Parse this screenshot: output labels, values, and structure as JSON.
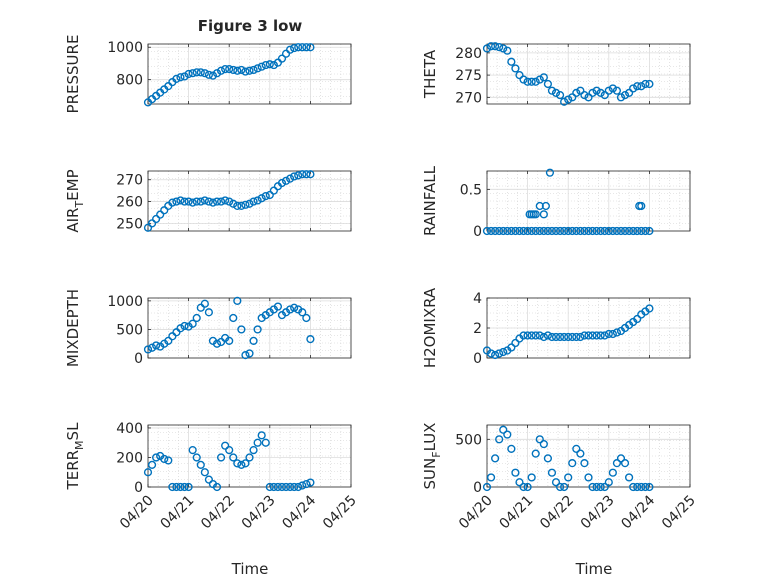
{
  "figure": {
    "title": "Figure 3 low",
    "xlabel": "Time",
    "marker_color": "#0072BD",
    "time_ticks": [
      "04/20",
      "04/21",
      "04/22",
      "04/23",
      "04/24",
      "04/25"
    ]
  },
  "chart_data": [
    {
      "type": "scatter",
      "name": "PRESSURE",
      "ylabel": "PRESSURE",
      "xlim": [
        0,
        5
      ],
      "ylim": [
        650,
        1020
      ],
      "yticks": [
        800,
        1000
      ],
      "grid": true,
      "x": [
        0,
        0.1,
        0.2,
        0.3,
        0.4,
        0.5,
        0.6,
        0.7,
        0.8,
        0.9,
        1.0,
        1.1,
        1.2,
        1.3,
        1.4,
        1.5,
        1.6,
        1.7,
        1.8,
        1.9,
        2.0,
        2.1,
        2.2,
        2.3,
        2.4,
        2.5,
        2.6,
        2.7,
        2.8,
        2.9,
        3.0,
        3.1,
        3.2,
        3.3,
        3.4,
        3.5,
        3.6,
        3.7,
        3.8,
        3.9,
        4.0
      ],
      "y": [
        660,
        680,
        700,
        720,
        740,
        760,
        785,
        805,
        815,
        820,
        835,
        840,
        845,
        845,
        840,
        830,
        825,
        840,
        855,
        865,
        865,
        860,
        855,
        860,
        850,
        855,
        860,
        870,
        880,
        890,
        895,
        890,
        905,
        930,
        960,
        985,
        995,
        1000,
        1000,
        1000,
        1000
      ]
    },
    {
      "type": "scatter",
      "name": "THETA",
      "ylabel": "THETA",
      "xlim": [
        0,
        5
      ],
      "ylim": [
        268.5,
        282
      ],
      "yticks": [
        270,
        275,
        280
      ],
      "grid": true,
      "x": [
        0,
        0.1,
        0.2,
        0.3,
        0.4,
        0.5,
        0.6,
        0.7,
        0.8,
        0.9,
        1.0,
        1.1,
        1.2,
        1.3,
        1.4,
        1.5,
        1.6,
        1.7,
        1.8,
        1.9,
        2.0,
        2.1,
        2.2,
        2.3,
        2.4,
        2.5,
        2.6,
        2.7,
        2.8,
        2.9,
        3.0,
        3.1,
        3.2,
        3.3,
        3.4,
        3.5,
        3.6,
        3.7,
        3.8,
        3.9,
        4.0
      ],
      "y": [
        281,
        281.5,
        281.5,
        281.3,
        281,
        280.5,
        278,
        276.5,
        275,
        274,
        273.5,
        273.5,
        273.5,
        274,
        274.5,
        273,
        271.5,
        271,
        270.5,
        269,
        269.5,
        270,
        271,
        271.5,
        270.5,
        270,
        271,
        271.5,
        271,
        270.5,
        271.5,
        272,
        271.5,
        270,
        270.5,
        271,
        272,
        272.5,
        272.5,
        273,
        273
      ]
    },
    {
      "type": "scatter",
      "name": "AIR_TEMP",
      "ylabel": "AIR_TEMP",
      "xlim": [
        0,
        5
      ],
      "ylim": [
        246.5,
        274
      ],
      "yticks": [
        250,
        260,
        270
      ],
      "grid": true,
      "x": [
        0,
        0.1,
        0.2,
        0.3,
        0.4,
        0.5,
        0.6,
        0.7,
        0.8,
        0.9,
        1.0,
        1.1,
        1.2,
        1.3,
        1.4,
        1.5,
        1.6,
        1.7,
        1.8,
        1.9,
        2.0,
        2.1,
        2.2,
        2.3,
        2.4,
        2.5,
        2.6,
        2.7,
        2.8,
        2.9,
        3.0,
        3.1,
        3.2,
        3.3,
        3.4,
        3.5,
        3.6,
        3.7,
        3.8,
        3.9,
        4.0
      ],
      "y": [
        248,
        250,
        252,
        254,
        256,
        258,
        259.5,
        260,
        260.5,
        260,
        260,
        259.5,
        260,
        260,
        260.5,
        260,
        259.5,
        260,
        260,
        260.5,
        260,
        259,
        258,
        258,
        258.5,
        259,
        260,
        260.5,
        261.5,
        262.5,
        263,
        265,
        267,
        268.5,
        269.5,
        270.5,
        271.5,
        272,
        272.5,
        272.5,
        272.5
      ]
    },
    {
      "type": "scatter",
      "name": "RAINFALL",
      "ylabel": "RAINFALL",
      "xlim": [
        0,
        5
      ],
      "ylim": [
        0,
        0.72
      ],
      "yticks": [
        0,
        0.5
      ],
      "grid": true,
      "x": [
        0,
        0.1,
        0.2,
        0.3,
        0.4,
        0.5,
        0.6,
        0.7,
        0.8,
        0.9,
        1.0,
        1.1,
        1.2,
        1.3,
        1.4,
        1.5,
        1.6,
        1.7,
        1.8,
        1.9,
        2.0,
        2.1,
        2.2,
        2.3,
        2.4,
        2.5,
        2.6,
        2.7,
        2.8,
        2.9,
        3.0,
        3.1,
        3.2,
        3.3,
        3.4,
        3.5,
        3.6,
        3.7,
        3.8,
        3.9,
        4.0,
        1.05,
        1.1,
        1.15,
        1.2,
        1.3,
        1.4,
        1.45,
        1.55,
        3.75,
        3.8
      ],
      "y": [
        0,
        0,
        0,
        0,
        0,
        0,
        0,
        0,
        0,
        0,
        0,
        0,
        0,
        0,
        0,
        0,
        0,
        0,
        0,
        0,
        0,
        0,
        0,
        0,
        0,
        0,
        0,
        0,
        0,
        0,
        0,
        0,
        0,
        0,
        0,
        0,
        0,
        0,
        0,
        0,
        0,
        0.2,
        0.2,
        0.2,
        0.2,
        0.3,
        0.2,
        0.3,
        0.7,
        0.3,
        0.3
      ]
    },
    {
      "type": "scatter",
      "name": "MIXDEPTH",
      "ylabel": "MIXDEPTH",
      "xlim": [
        0,
        5
      ],
      "ylim": [
        0,
        1050
      ],
      "yticks": [
        0,
        500,
        1000
      ],
      "grid": true,
      "x": [
        0,
        0.1,
        0.2,
        0.3,
        0.4,
        0.5,
        0.6,
        0.7,
        0.8,
        0.9,
        1.0,
        1.1,
        1.2,
        1.3,
        1.4,
        1.5,
        1.6,
        1.7,
        1.8,
        1.9,
        2.0,
        2.1,
        2.2,
        2.3,
        2.4,
        2.5,
        2.6,
        2.7,
        2.8,
        2.9,
        3.0,
        3.1,
        3.2,
        3.3,
        3.4,
        3.5,
        3.6,
        3.7,
        3.8,
        3.9,
        4.0
      ],
      "y": [
        150,
        180,
        220,
        200,
        250,
        300,
        380,
        450,
        520,
        560,
        550,
        600,
        700,
        880,
        950,
        800,
        300,
        250,
        280,
        350,
        300,
        700,
        1000,
        500,
        50,
        80,
        300,
        500,
        700,
        750,
        800,
        850,
        900,
        750,
        800,
        850,
        880,
        850,
        800,
        700,
        330
      ]
    },
    {
      "type": "scatter",
      "name": "H2OMIXRA",
      "ylabel": "H2OMIXRA",
      "xlim": [
        0,
        5
      ],
      "ylim": [
        0,
        4
      ],
      "yticks": [
        0,
        2,
        4
      ],
      "grid": true,
      "x": [
        0,
        0.1,
        0.2,
        0.3,
        0.4,
        0.5,
        0.6,
        0.7,
        0.8,
        0.9,
        1.0,
        1.1,
        1.2,
        1.3,
        1.4,
        1.5,
        1.6,
        1.7,
        1.8,
        1.9,
        2.0,
        2.1,
        2.2,
        2.3,
        2.4,
        2.5,
        2.6,
        2.7,
        2.8,
        2.9,
        3.0,
        3.1,
        3.2,
        3.3,
        3.4,
        3.5,
        3.6,
        3.7,
        3.8,
        3.9,
        4.0
      ],
      "y": [
        0.5,
        0.3,
        0.2,
        0.3,
        0.4,
        0.5,
        0.7,
        1.0,
        1.3,
        1.5,
        1.5,
        1.5,
        1.5,
        1.5,
        1.4,
        1.5,
        1.4,
        1.4,
        1.4,
        1.4,
        1.4,
        1.4,
        1.4,
        1.4,
        1.5,
        1.5,
        1.5,
        1.5,
        1.5,
        1.5,
        1.6,
        1.6,
        1.7,
        1.8,
        2.0,
        2.2,
        2.4,
        2.6,
        2.9,
        3.1,
        3.3
      ]
    },
    {
      "type": "scatter",
      "name": "TERR_MSL",
      "ylabel": "TERR_MSL",
      "xlim": [
        0,
        5
      ],
      "ylim": [
        0,
        420
      ],
      "yticks": [
        0,
        200,
        400
      ],
      "grid": true,
      "x": [
        0,
        0.1,
        0.2,
        0.3,
        0.4,
        0.5,
        0.6,
        0.7,
        0.8,
        0.9,
        1.0,
        1.1,
        1.2,
        1.3,
        1.4,
        1.5,
        1.6,
        1.7,
        1.8,
        1.9,
        2.0,
        2.1,
        2.2,
        2.3,
        2.4,
        2.5,
        2.6,
        2.7,
        2.8,
        2.9,
        3.0,
        3.1,
        3.2,
        3.3,
        3.4,
        3.5,
        3.6,
        3.7,
        3.8,
        3.9,
        4.0
      ],
      "y": [
        100,
        150,
        200,
        210,
        190,
        180,
        0,
        0,
        0,
        0,
        0,
        250,
        200,
        150,
        100,
        50,
        20,
        0,
        200,
        280,
        250,
        200,
        160,
        150,
        160,
        200,
        250,
        300,
        350,
        300,
        0,
        0,
        0,
        0,
        0,
        0,
        0,
        0,
        10,
        20,
        30
      ]
    },
    {
      "type": "scatter",
      "name": "SUN_FLUX",
      "ylabel": "SUN_FLUX",
      "xlim": [
        0,
        5
      ],
      "ylim": [
        0,
        650
      ],
      "yticks": [
        0,
        500
      ],
      "grid": true,
      "x": [
        0,
        0.1,
        0.2,
        0.3,
        0.4,
        0.5,
        0.6,
        0.7,
        0.8,
        0.9,
        1.0,
        1.1,
        1.2,
        1.3,
        1.4,
        1.5,
        1.6,
        1.7,
        1.8,
        1.9,
        2.0,
        2.1,
        2.2,
        2.3,
        2.4,
        2.5,
        2.6,
        2.7,
        2.8,
        2.9,
        3.0,
        3.1,
        3.2,
        3.3,
        3.4,
        3.5,
        3.6,
        3.7,
        3.8,
        3.9,
        4.0
      ],
      "y": [
        0,
        100,
        300,
        500,
        600,
        550,
        400,
        150,
        50,
        0,
        0,
        100,
        350,
        500,
        450,
        300,
        150,
        50,
        0,
        0,
        100,
        250,
        400,
        350,
        250,
        100,
        0,
        0,
        0,
        0,
        50,
        150,
        250,
        300,
        250,
        100,
        0,
        0,
        0,
        0,
        0
      ]
    }
  ]
}
